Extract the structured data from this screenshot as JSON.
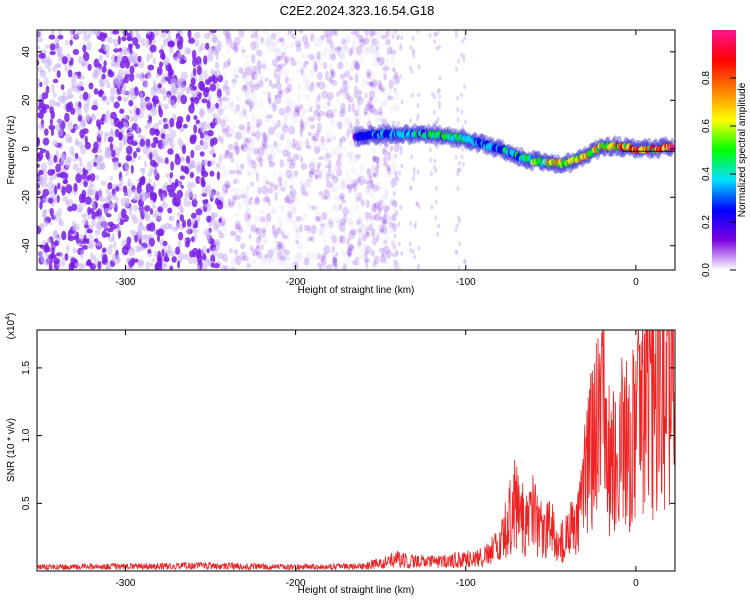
{
  "figure": {
    "title": "C2E2.2024.323.16.54.G18"
  },
  "chart_data": [
    {
      "type": "heatmap",
      "xlabel": "Height of straight line (km)",
      "ylabel": "Frequency (Hz)",
      "xlim": [
        -352,
        23
      ],
      "ylim": [
        -50,
        49
      ],
      "xticks": [
        -300,
        -200,
        -100,
        0
      ],
      "yticks": [
        -40,
        -20,
        0,
        20,
        40
      ],
      "noise_region_x": [
        -352,
        -155
      ],
      "signal_track": {
        "x": [
          -165,
          -150,
          -140,
          -130,
          -120,
          -110,
          -100,
          -90,
          -80,
          -70,
          -60,
          -50,
          -40,
          -30,
          -20,
          -10,
          0,
          10,
          22
        ],
        "freq": [
          5,
          6,
          6,
          6,
          6,
          5,
          4,
          2,
          0,
          -3,
          -5,
          -6,
          -6,
          -3,
          1,
          1,
          0,
          0,
          1
        ],
        "amplitude": [
          0.25,
          0.35,
          0.4,
          0.45,
          0.5,
          0.5,
          0.45,
          0.4,
          0.4,
          0.45,
          0.55,
          0.7,
          0.8,
          0.7,
          0.75,
          0.8,
          0.85,
          0.9,
          1.0
        ]
      },
      "colorbar": {
        "label": "Normalized spectral amplitude",
        "range": [
          0,
          1
        ],
        "ticks": [
          0.0,
          0.2,
          0.4,
          0.6,
          0.8
        ],
        "tick_labels": [
          "0.0",
          "0.2",
          "0.4",
          "0.6",
          "0.8"
        ],
        "colors": [
          "#ffffff",
          "#7a00e0",
          "#0000ff",
          "#00e0ff",
          "#00ff00",
          "#ffff00",
          "#ff7f00",
          "#ff0000",
          "#ff1493"
        ]
      }
    },
    {
      "type": "line",
      "xlabel": "Height of straight line (km)",
      "ylabel": "SNR (10 * v/v)",
      "scale_label": "(x10",
      "scale_exp": "4",
      "scale_close": ")",
      "xlim": [
        -352,
        23
      ],
      "ylim": [
        0,
        17800
      ],
      "xticks": [
        -300,
        -200,
        -100,
        0
      ],
      "yticks": [
        5000,
        10000,
        15000
      ],
      "ytick_labels": [
        "0.5",
        "1.0",
        "1.5"
      ],
      "color": "#ee2222",
      "series": [
        {
          "x": [
            -352,
            -300,
            -250,
            -200,
            -160,
            -140,
            -120,
            -100,
            -90,
            -80,
            -75,
            -70,
            -65,
            -60,
            -55,
            -50,
            -45,
            -40,
            -35,
            -30,
            -25,
            -20,
            -15,
            -10,
            -5,
            0,
            5,
            10,
            15,
            20,
            23
          ],
          "values": [
            300,
            350,
            400,
            300,
            350,
            900,
            700,
            900,
            1200,
            2000,
            3800,
            5500,
            3500,
            4500,
            3000,
            3500,
            2000,
            2800,
            4000,
            7000,
            10000,
            12500,
            9000,
            11000,
            10000,
            11500,
            12500,
            13500,
            14000,
            15000,
            15500
          ]
        }
      ]
    }
  ]
}
